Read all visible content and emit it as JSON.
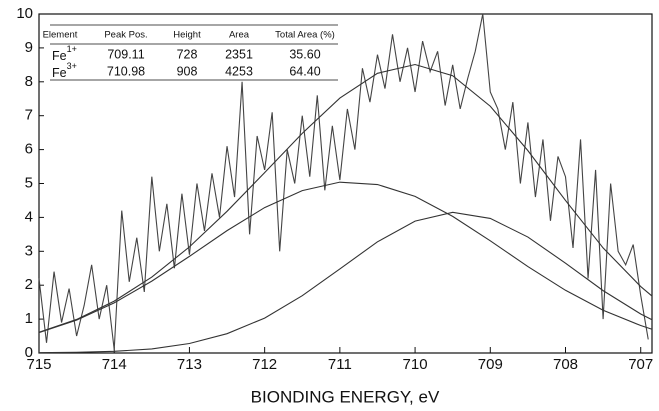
{
  "chart_data": {
    "type": "line",
    "x_label": "BIONDING ENERGY, eV",
    "xlim": [
      715,
      706.85
    ],
    "ylim": [
      0,
      10
    ],
    "xticks": [
      715,
      714,
      713,
      712,
      711,
      710,
      709,
      708,
      707
    ],
    "yticks": [
      0,
      1,
      2,
      3,
      4,
      5,
      6,
      7,
      8,
      9,
      10
    ],
    "table": {
      "columns": [
        "Element",
        "Peak Pos.",
        "Height",
        "Area",
        "Total Area (%)"
      ],
      "rows": [
        [
          {
            "element": "Fe",
            "charge": "1+"
          },
          "709.11",
          "728",
          "2351",
          "35.60"
        ],
        [
          {
            "element": "Fe",
            "charge": "3+"
          },
          "710.98",
          "908",
          "4253",
          "64.40"
        ]
      ]
    },
    "series": [
      {
        "color": "#444444",
        "x": [
          715.0,
          714.9,
          714.8,
          714.7,
          714.6,
          714.5,
          714.4,
          714.3,
          714.2,
          714.1,
          714.0,
          713.9,
          713.8,
          713.7,
          713.6,
          713.5,
          713.4,
          713.3,
          713.2,
          713.1,
          713.0,
          712.9,
          712.8,
          712.7,
          712.6,
          712.5,
          712.4,
          712.3,
          712.2,
          712.1,
          712.0,
          711.9,
          711.8,
          711.7,
          711.6,
          711.5,
          711.4,
          711.3,
          711.2,
          711.1,
          711.0,
          710.9,
          710.8,
          710.7,
          710.6,
          710.5,
          710.4,
          710.3,
          710.2,
          710.1,
          710.0,
          709.9,
          709.8,
          709.7,
          709.6,
          709.5,
          709.4,
          709.3,
          709.2,
          709.1,
          709.0,
          708.9,
          708.8,
          708.7,
          708.6,
          708.5,
          708.4,
          708.3,
          708.2,
          708.1,
          708.0,
          707.9,
          707.8,
          707.7,
          707.6,
          707.5,
          707.4,
          707.3,
          707.2,
          707.1,
          707.0,
          706.9
        ],
        "values": [
          2.2,
          0.3,
          2.4,
          0.9,
          1.9,
          0.5,
          1.4,
          2.6,
          1.0,
          2.0,
          0.1,
          4.2,
          2.1,
          3.4,
          1.8,
          5.2,
          3.0,
          4.4,
          2.5,
          4.7,
          2.9,
          5.0,
          3.6,
          5.3,
          4.0,
          6.1,
          4.6,
          8.0,
          3.5,
          6.4,
          5.4,
          7.1,
          3.0,
          6.0,
          5.0,
          7.0,
          5.2,
          7.6,
          4.8,
          6.7,
          5.1,
          7.2,
          6.0,
          8.4,
          7.4,
          8.8,
          7.8,
          9.4,
          8.0,
          9.0,
          7.7,
          9.2,
          8.3,
          8.9,
          7.3,
          8.5,
          7.2,
          8.1,
          8.9,
          10.0,
          7.7,
          7.2,
          6.0,
          7.4,
          5.0,
          6.8,
          4.6,
          6.3,
          3.9,
          5.8,
          5.2,
          3.1,
          6.3,
          2.2,
          5.4,
          1.0,
          5.0,
          3.0,
          2.6,
          3.2,
          1.7,
          0.4
        ]
      },
      {
        "color": "#333333",
        "x": [
          715,
          714.5,
          714,
          713.5,
          713,
          712.5,
          712,
          711.5,
          711,
          710.5,
          710,
          709.5,
          709,
          708.5,
          708,
          707.5,
          707,
          706.85
        ],
        "values": [
          0.61,
          0.99,
          1.53,
          2.24,
          3.13,
          4.18,
          5.32,
          6.48,
          7.52,
          8.25,
          8.51,
          8.18,
          7.28,
          5.97,
          4.5,
          3.1,
          1.96,
          1.68
        ]
      },
      {
        "color": "#333333",
        "x": [
          715,
          714.5,
          714,
          713.5,
          713,
          712.5,
          712,
          711.5,
          711,
          710.5,
          710,
          709.5,
          709,
          708.5,
          708,
          707.5,
          707,
          706.85
        ],
        "values": [
          0.6,
          0.97,
          1.48,
          2.12,
          2.85,
          3.61,
          4.29,
          4.79,
          5.04,
          4.97,
          4.62,
          4.03,
          3.31,
          2.55,
          1.85,
          1.26,
          0.81,
          0.7
        ]
      },
      {
        "color": "#333333",
        "x": [
          715,
          714.5,
          714,
          713.5,
          713,
          712.5,
          712,
          711.5,
          711,
          710.5,
          710,
          709.5,
          709,
          708.5,
          708,
          707.5,
          707,
          706.85
        ],
        "values": [
          0.01,
          0.02,
          0.05,
          0.12,
          0.28,
          0.57,
          1.03,
          1.69,
          2.48,
          3.28,
          3.89,
          4.15,
          3.97,
          3.42,
          2.65,
          1.84,
          1.15,
          0.98
        ]
      }
    ]
  }
}
